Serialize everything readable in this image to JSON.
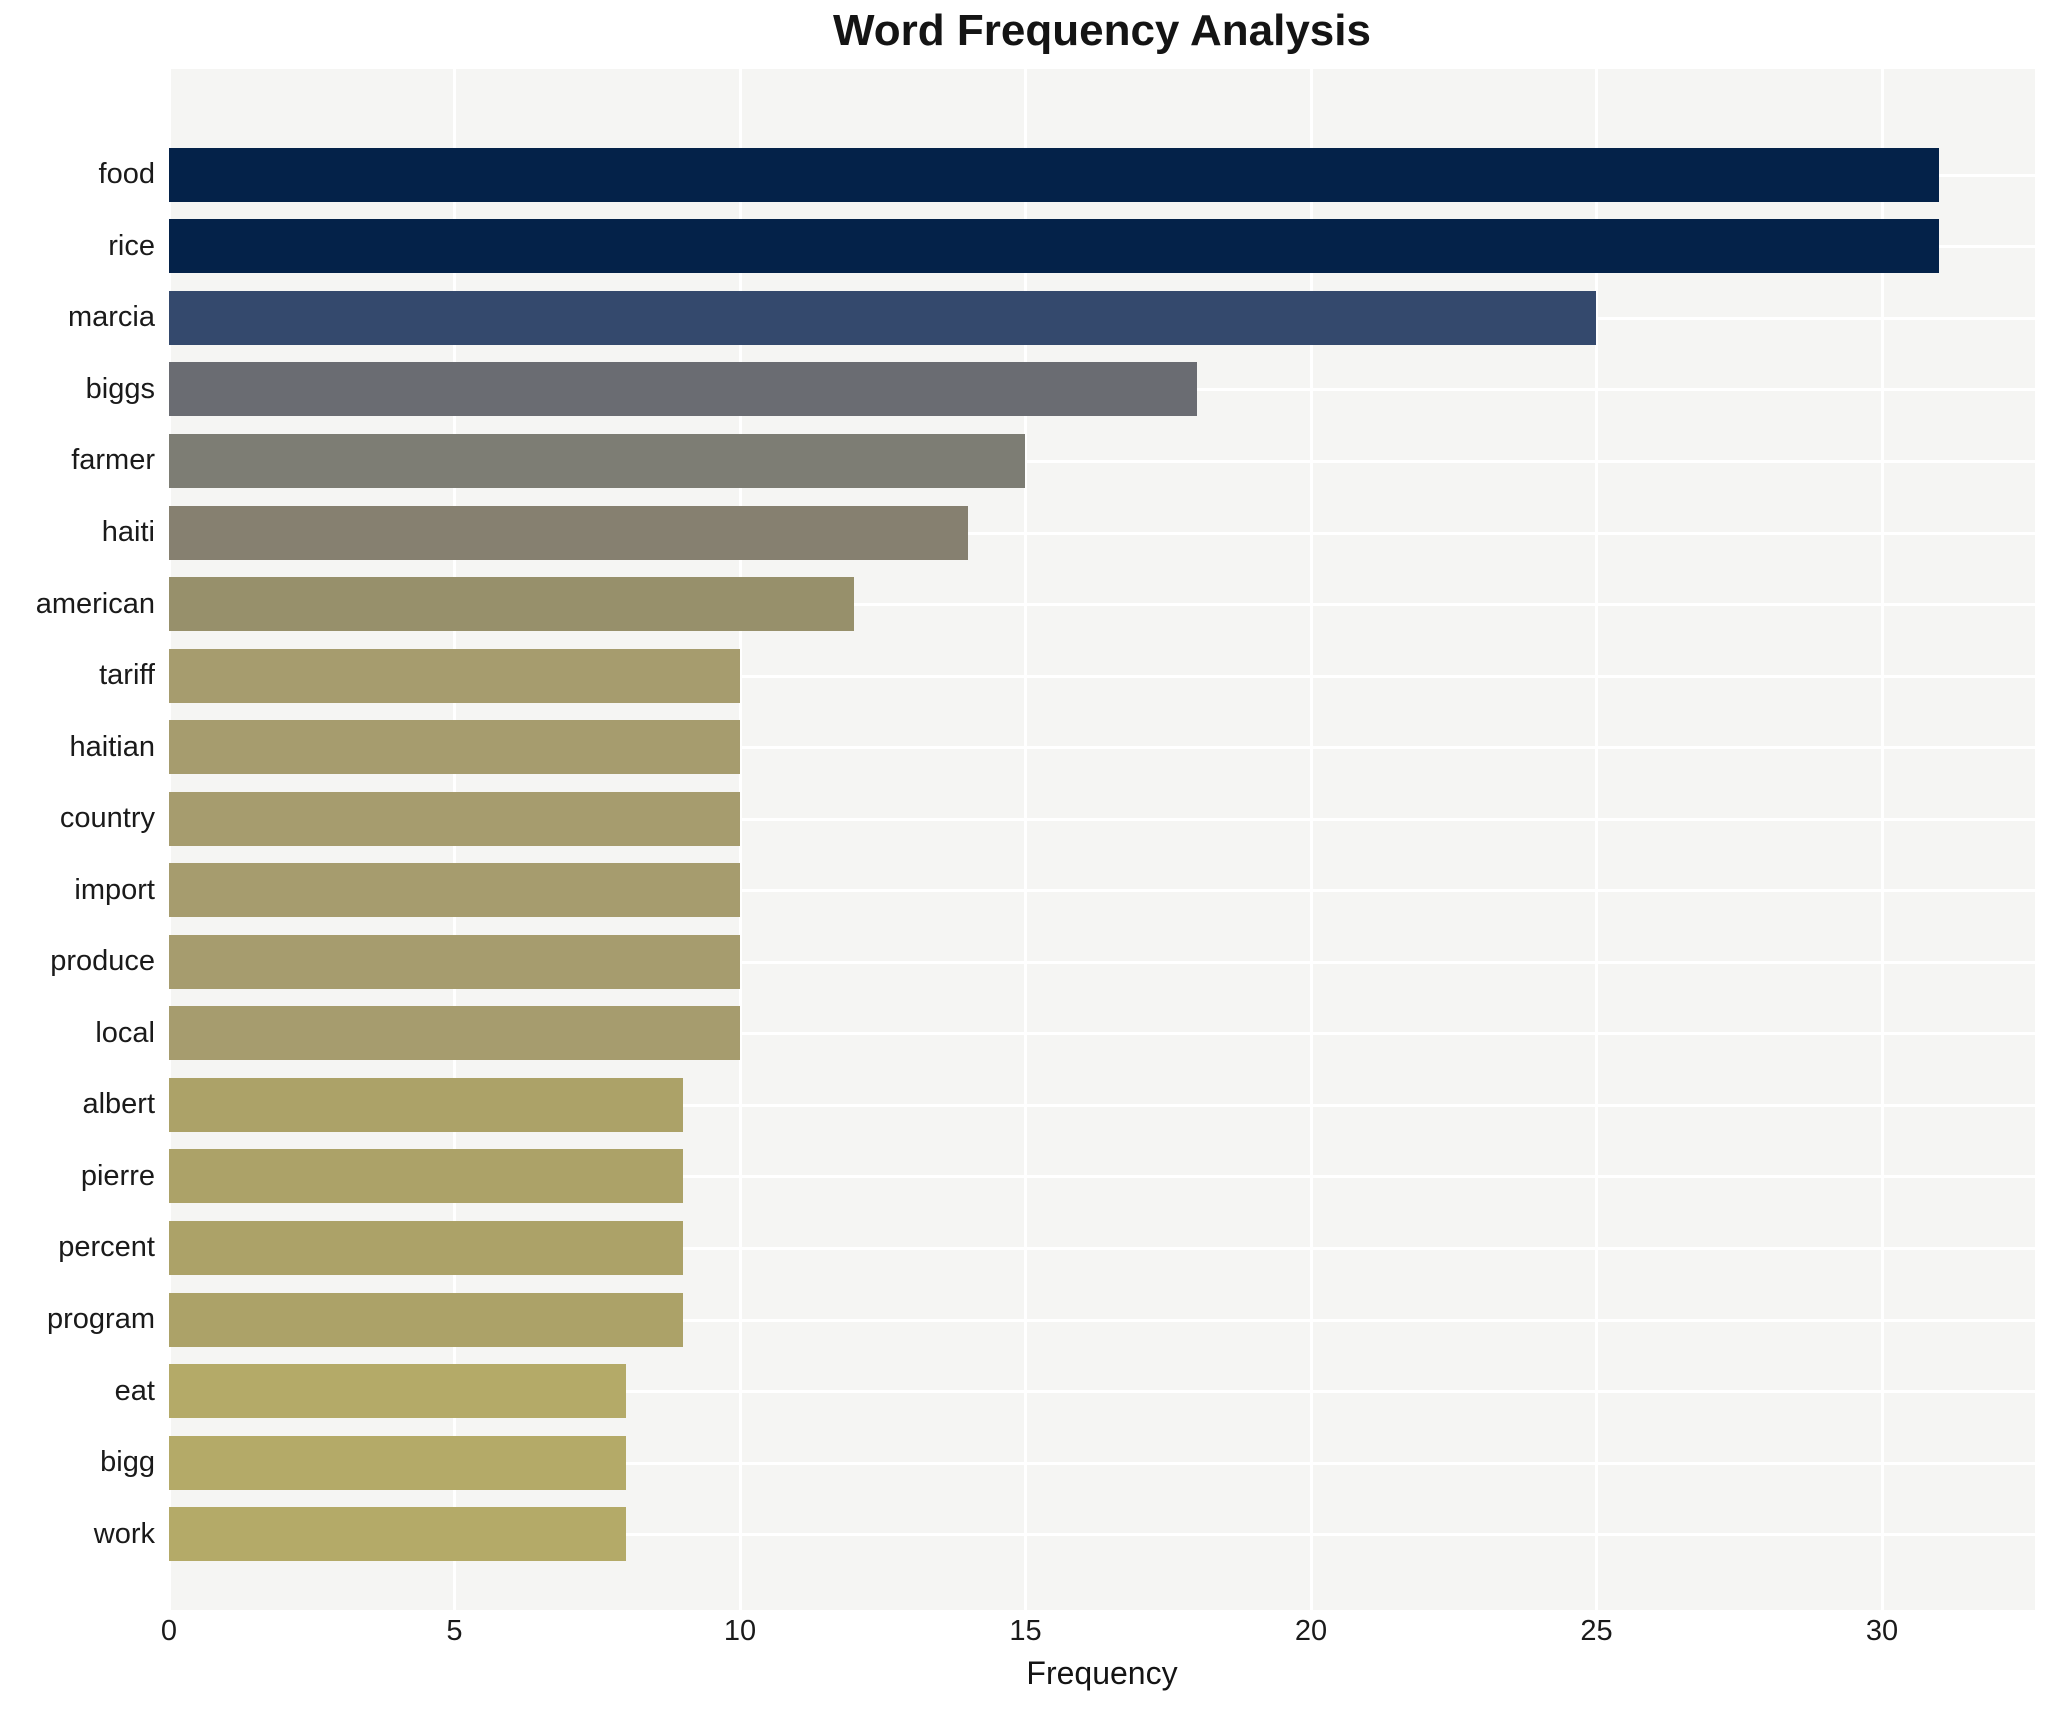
{
  "title": "Word Frequency Analysis",
  "xaxis_label": "Frequency",
  "plot_background": "#f5f5f3",
  "gridline_color": "#ffffff",
  "chart_data": {
    "type": "bar",
    "orientation": "horizontal",
    "title": "Word Frequency Analysis",
    "xlabel": "Frequency",
    "ylabel": "",
    "categories": [
      "food",
      "rice",
      "marcia",
      "biggs",
      "farmer",
      "haiti",
      "american",
      "tariff",
      "haitian",
      "country",
      "import",
      "produce",
      "local",
      "albert",
      "pierre",
      "percent",
      "program",
      "eat",
      "bigg",
      "work"
    ],
    "values": [
      31,
      31,
      25,
      18,
      15,
      14,
      12,
      10,
      10,
      10,
      10,
      10,
      10,
      9,
      9,
      9,
      9,
      8,
      8,
      8
    ],
    "bar_colors": [
      "#042249",
      "#042249",
      "#34496d",
      "#6a6c72",
      "#7d7d74",
      "#868070",
      "#97906b",
      "#a69c6e",
      "#a69c6e",
      "#a69c6e",
      "#a69c6e",
      "#a69c6e",
      "#a69c6e",
      "#aca268",
      "#aca268",
      "#aca268",
      "#aca268",
      "#b4aa68",
      "#b4aa68",
      "#b4aa68"
    ],
    "xticks": [
      0,
      5,
      10,
      15,
      20,
      25,
      30
    ],
    "xlim": [
      0,
      32.68
    ],
    "grid": true,
    "legend": "none"
  }
}
